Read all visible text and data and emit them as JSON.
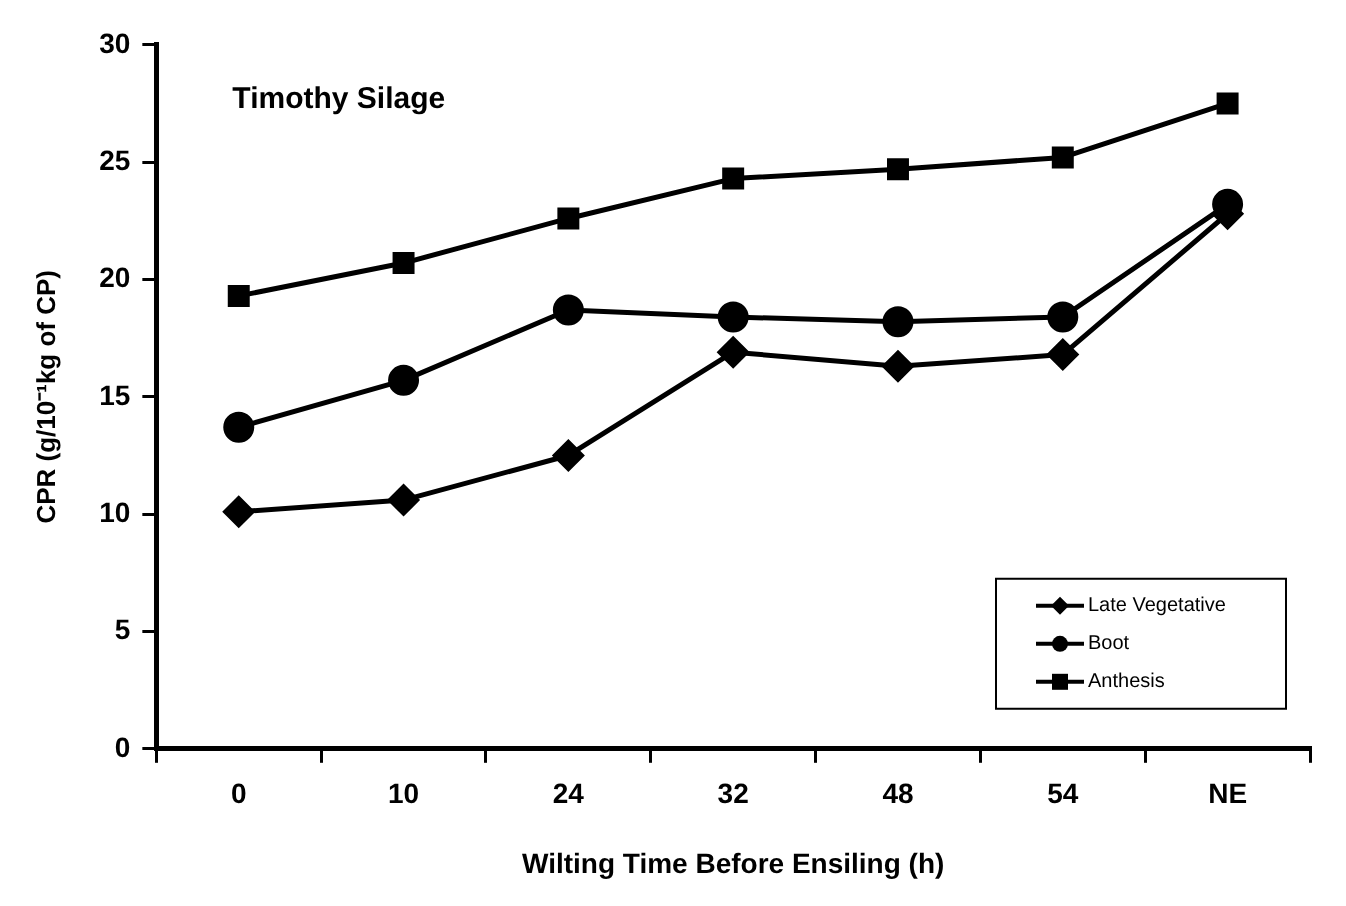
{
  "chart_data": {
    "type": "line",
    "xlabel": "Wilting Time Before Ensiling (h)",
    "ylabel": "CPR (g/10⁻¹kg of CP)",
    "annotations": [
      "Timothy Silage"
    ],
    "categories": [
      "0",
      "10",
      "24",
      "32",
      "48",
      "54",
      "NE"
    ],
    "ylim": [
      0,
      30
    ],
    "yticks": [
      0,
      5,
      10,
      15,
      20,
      25,
      30
    ],
    "grid": false,
    "legend": "bottom right",
    "line_style": "solid",
    "series": [
      {
        "name": "Late Vegetative",
        "color": "#000000",
        "marker": "diamond",
        "values": [
          10.1,
          10.6,
          12.5,
          16.9,
          16.3,
          16.8,
          22.8
        ]
      },
      {
        "name": "Boot",
        "color": "#000000",
        "marker": "circle",
        "values": [
          13.7,
          15.7,
          18.7,
          18.4,
          18.2,
          18.4,
          23.2
        ]
      },
      {
        "name": "Anthesis",
        "color": "#000000",
        "marker": "square",
        "values": [
          19.3,
          20.7,
          22.6,
          24.3,
          24.7,
          25.2,
          27.5
        ]
      }
    ]
  }
}
